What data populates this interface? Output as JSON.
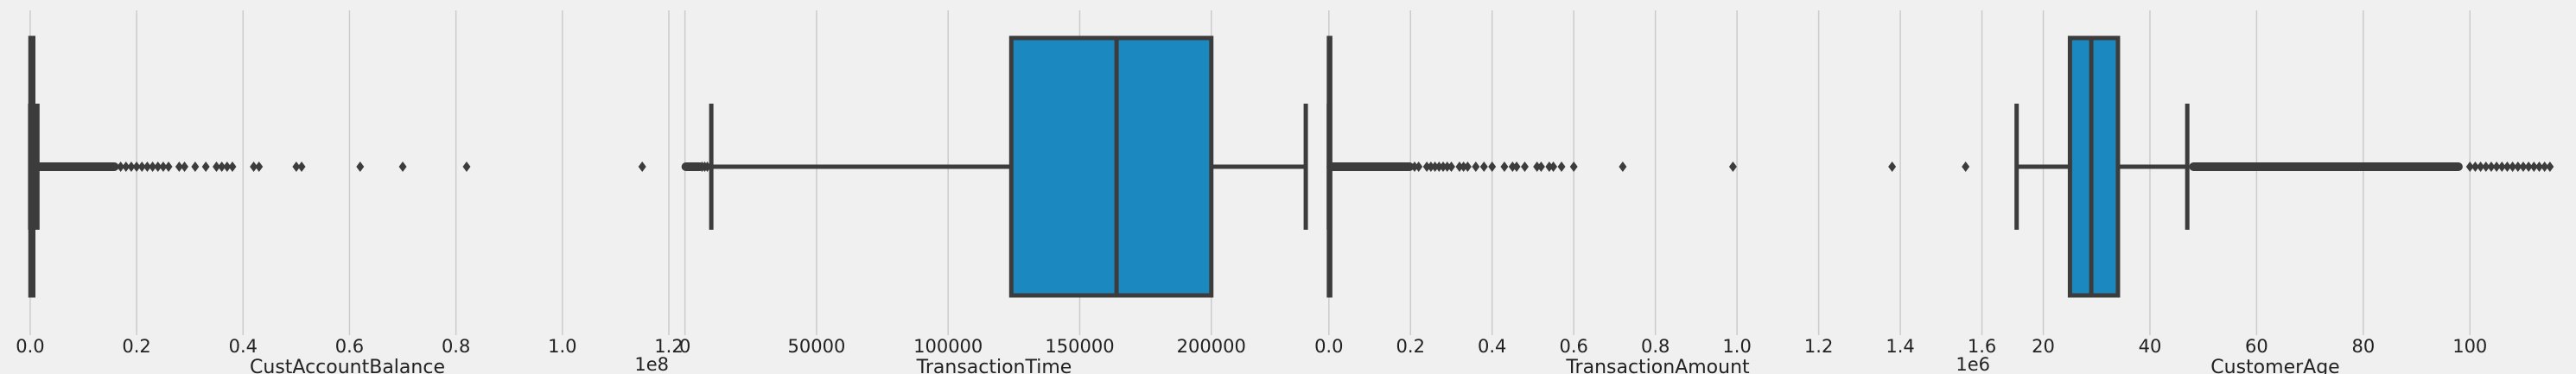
{
  "colors": {
    "background": "#f0f0f0",
    "grid": "#cbcbcb",
    "box_fill": "#1b88bf",
    "line": "#3c3c3c"
  },
  "chart_data": [
    {
      "type": "box",
      "orientation": "horizontal",
      "xlabel": "CustAccountBalance",
      "offset_label": "1e8",
      "xlim": [
        -0.008,
        1.2
      ],
      "ticks": [
        0.0,
        0.2,
        0.4,
        0.6,
        0.8,
        1.0,
        1.2
      ],
      "tick_labels": [
        "0.0",
        "0.2",
        "0.4",
        "0.6",
        "0.8",
        "1.0",
        "1.2"
      ],
      "grid": true,
      "box": {
        "whisker_low": 0.0,
        "q1": 0.0005,
        "median": 0.0017,
        "q3": 0.0058,
        "whisker_high": 0.0136
      },
      "outlier_dense_range": [
        0.014,
        0.16
      ],
      "outliers": [
        0.17,
        0.18,
        0.19,
        0.2,
        0.21,
        0.22,
        0.23,
        0.24,
        0.25,
        0.26,
        0.28,
        0.29,
        0.31,
        0.33,
        0.35,
        0.36,
        0.37,
        0.38,
        0.42,
        0.43,
        0.5,
        0.51,
        0.62,
        0.7,
        0.82,
        1.15
      ]
    },
    {
      "type": "box",
      "orientation": "horizontal",
      "xlabel": "TransactionTime",
      "offset_label": "",
      "xlim": [
        -3500,
        238500
      ],
      "ticks": [
        0,
        50000,
        100000,
        150000,
        200000
      ],
      "tick_labels": [
        "0",
        "50000",
        "100000",
        "150000",
        "200000"
      ],
      "grid": true,
      "box": {
        "whisker_low": 10000,
        "q1": 124000,
        "median": 164000,
        "q3": 200000,
        "whisker_high": 235900
      },
      "outlier_dense_range": [
        0,
        6000
      ],
      "outliers": [
        6500,
        7500,
        8500
      ]
    },
    {
      "type": "box",
      "orientation": "horizontal",
      "xlabel": "TransactionAmount",
      "offset_label": "1e6",
      "xlim": [
        -0.008,
        1.62
      ],
      "ticks": [
        0.0,
        0.2,
        0.4,
        0.6,
        0.8,
        1.0,
        1.2,
        1.4,
        1.6
      ],
      "tick_labels": [
        "0.0",
        "0.2",
        "0.4",
        "0.6",
        "0.8",
        "1.0",
        "1.2",
        "1.4",
        "1.6"
      ],
      "grid": true,
      "box": {
        "whisker_low": 0.0,
        "q1": 0.00016,
        "median": 0.00046,
        "q3": 0.0012,
        "whisker_high": 0.0027
      },
      "outlier_dense_range": [
        0.003,
        0.2
      ],
      "outliers": [
        0.21,
        0.22,
        0.24,
        0.25,
        0.26,
        0.27,
        0.28,
        0.29,
        0.3,
        0.32,
        0.33,
        0.34,
        0.36,
        0.38,
        0.4,
        0.43,
        0.45,
        0.46,
        0.48,
        0.51,
        0.52,
        0.54,
        0.55,
        0.57,
        0.6,
        0.72,
        0.99,
        1.38,
        1.56
      ]
    },
    {
      "type": "box",
      "orientation": "horizontal",
      "xlabel": "CustomerAge",
      "offset_label": "",
      "xlim": [
        11,
        116
      ],
      "ticks": [
        20,
        40,
        60,
        80,
        100
      ],
      "tick_labels": [
        "20",
        "40",
        "60",
        "80",
        "100"
      ],
      "grid": true,
      "box": {
        "whisker_low": 15,
        "q1": 25,
        "median": 29,
        "q3": 34,
        "whisker_high": 47
      },
      "outlier_dense_range": [
        48,
        98
      ],
      "outliers": [
        100,
        101,
        102,
        103,
        104,
        105,
        106,
        107,
        108,
        109,
        110,
        111,
        112,
        113,
        114,
        115
      ]
    }
  ]
}
